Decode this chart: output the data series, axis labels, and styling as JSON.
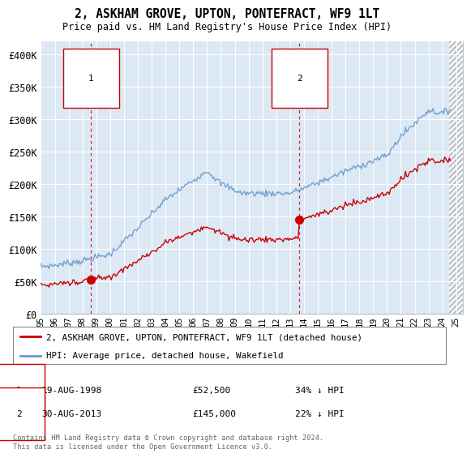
{
  "title": "2, ASKHAM GROVE, UPTON, PONTEFRACT, WF9 1LT",
  "subtitle": "Price paid vs. HM Land Registry's House Price Index (HPI)",
  "plot_bg_color": "#dce9f5",
  "hpi_color": "#6699cc",
  "price_color": "#cc0000",
  "marker_color": "#cc0000",
  "sale1_date_num": 1998.63,
  "sale1_price": 52500,
  "sale2_date_num": 2013.66,
  "sale2_price": 145000,
  "ylim": [
    0,
    420000
  ],
  "xlim_left": 1995.0,
  "xlim_right": 2025.5,
  "data_end": 2024.5,
  "yticks": [
    0,
    50000,
    100000,
    150000,
    200000,
    250000,
    300000,
    350000,
    400000
  ],
  "ytick_labels": [
    "£0",
    "£50K",
    "£100K",
    "£150K",
    "£200K",
    "£250K",
    "£300K",
    "£350K",
    "£400K"
  ],
  "xticks": [
    1995,
    1996,
    1997,
    1998,
    1999,
    2000,
    2001,
    2002,
    2003,
    2004,
    2005,
    2006,
    2007,
    2008,
    2009,
    2010,
    2011,
    2012,
    2013,
    2014,
    2015,
    2016,
    2017,
    2018,
    2019,
    2020,
    2021,
    2022,
    2023,
    2024,
    2025
  ],
  "legend_label_price": "2, ASKHAM GROVE, UPTON, PONTEFRACT, WF9 1LT (detached house)",
  "legend_label_hpi": "HPI: Average price, detached house, Wakefield",
  "annotation1_date": "19-AUG-1998",
  "annotation1_price_str": "£52,500",
  "annotation1_pct": "34% ↓ HPI",
  "annotation2_date": "30-AUG-2013",
  "annotation2_price_str": "£145,000",
  "annotation2_pct": "22% ↓ HPI",
  "footer": "Contains HM Land Registry data © Crown copyright and database right 2024.\nThis data is licensed under the Open Government Licence v3.0."
}
